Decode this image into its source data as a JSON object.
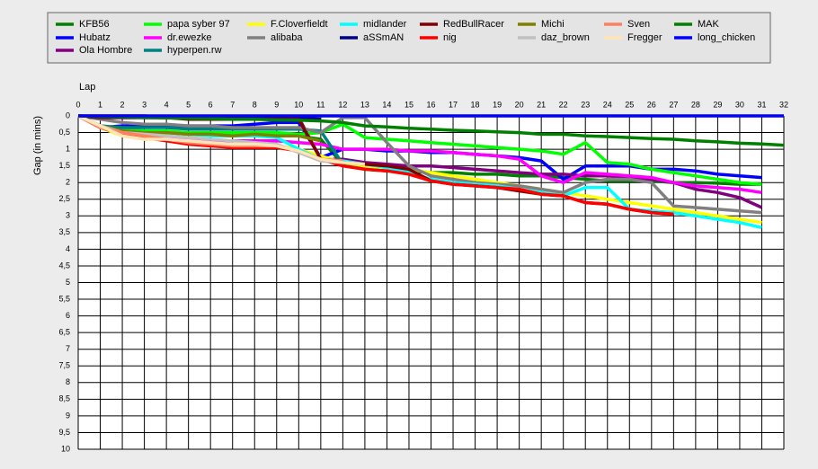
{
  "chart_data": {
    "type": "line",
    "x_label": "Lap",
    "y_label": "Gap (in mins)",
    "x": [
      0,
      1,
      2,
      3,
      4,
      5,
      6,
      7,
      8,
      9,
      10,
      11,
      12,
      13,
      14,
      15,
      16,
      17,
      18,
      19,
      20,
      21,
      22,
      23,
      24,
      25,
      26,
      27,
      28,
      29,
      30,
      31,
      32
    ],
    "xlim": [
      0,
      32
    ],
    "xticks": [
      0,
      1,
      2,
      3,
      4,
      5,
      6,
      7,
      8,
      9,
      10,
      11,
      12,
      13,
      14,
      15,
      16,
      17,
      18,
      19,
      20,
      21,
      22,
      23,
      24,
      25,
      26,
      27,
      28,
      29,
      30,
      31,
      32
    ],
    "ylim": [
      0,
      10
    ],
    "y_inverted": true,
    "grid": true,
    "yticks": [
      0,
      {
        "value": 0.5,
        "label": "0,5"
      },
      1,
      {
        "value": 1.5,
        "label": "1,5"
      },
      2,
      {
        "value": 2.5,
        "label": "2,5"
      },
      3,
      {
        "value": 3.5,
        "label": "3,5"
      },
      4,
      {
        "value": 4.5,
        "label": "4,5"
      },
      5,
      {
        "value": 5.5,
        "label": "5,5"
      },
      6,
      {
        "value": 6.5,
        "label": "6,5"
      },
      7,
      {
        "value": 7.5,
        "label": "7,5"
      },
      8,
      {
        "value": 8.5,
        "label": "8,5"
      },
      9,
      {
        "value": 9.5,
        "label": "9,5"
      },
      10
    ],
    "series": [
      {
        "name": "KFB56",
        "color": "#008000",
        "values": [
          0,
          0.3,
          0.45,
          0.5,
          0.5,
          0.55,
          0.55,
          0.6,
          0.55,
          0.6,
          0.6,
          0.7,
          1.45,
          1.6,
          1.65,
          1.65,
          1.7,
          1.7,
          1.75,
          1.75,
          1.8,
          1.8,
          1.85,
          1.9,
          1.95,
          1.95,
          1.95,
          2.0,
          2.0,
          2.02,
          2.05,
          2.05,
          null
        ]
      },
      {
        "name": "Hubatz",
        "color": "#0000ff",
        "values": [
          0,
          0.35,
          0.3,
          0.3,
          0.3,
          0.3,
          0.3,
          0.3,
          0.25,
          0.2,
          0.2,
          1.25,
          1.0,
          1.0,
          1.05,
          1.05,
          1.1,
          1.1,
          1.15,
          1.2,
          1.25,
          1.35,
          1.9,
          1.5,
          1.5,
          1.5,
          1.6,
          1.6,
          1.65,
          1.75,
          1.8,
          1.85,
          null
        ]
      },
      {
        "name": "Ola Hombre",
        "color": "#800080",
        "values": [
          0,
          0,
          0,
          0,
          0.05,
          0.05,
          0.05,
          0.05,
          0.05,
          0.05,
          0.05,
          1.3,
          1.3,
          1.4,
          1.45,
          1.5,
          1.5,
          1.55,
          1.6,
          1.65,
          1.7,
          1.75,
          1.75,
          1.8,
          1.8,
          1.85,
          1.9,
          2.0,
          2.2,
          2.3,
          2.45,
          2.75,
          null
        ]
      },
      {
        "name": "papa syber 97",
        "color": "#00ff00",
        "values": [
          0,
          0.3,
          0.4,
          0.45,
          0.45,
          0.5,
          0.5,
          0.5,
          0.5,
          0.5,
          0.55,
          0.5,
          0.25,
          0.65,
          0.7,
          0.75,
          0.8,
          0.85,
          0.9,
          0.95,
          1.0,
          1.05,
          1.15,
          0.8,
          1.4,
          1.45,
          1.6,
          1.7,
          1.8,
          1.9,
          2.0,
          2.05,
          null
        ]
      },
      {
        "name": "dr.ewezke",
        "color": "#ff00ff",
        "values": [
          0,
          0.35,
          0.5,
          0.6,
          0.7,
          0.7,
          0.75,
          0.75,
          0.75,
          0.75,
          0.8,
          0.85,
          1.0,
          1.0,
          1.0,
          1.05,
          1.05,
          1.1,
          1.15,
          1.2,
          1.3,
          1.8,
          2.0,
          1.7,
          1.75,
          1.8,
          1.85,
          2.0,
          2.1,
          2.15,
          2.2,
          2.3,
          null
        ]
      },
      {
        "name": "hyperpen.rw",
        "color": "#008080",
        "values": [
          0,
          0.3,
          0.35,
          0.35,
          0.35,
          0.4,
          0.4,
          0.4,
          0.4,
          0.4,
          0.4,
          0.45,
          1.45,
          null,
          null,
          null,
          null,
          null,
          null,
          null,
          null,
          null,
          null,
          null,
          null,
          null,
          null,
          null,
          null,
          null,
          null,
          null,
          null
        ]
      },
      {
        "name": "F.Cloverfieldt",
        "color": "#ffff00",
        "values": [
          0,
          0.35,
          0.6,
          0.7,
          0.7,
          0.8,
          0.85,
          0.9,
          0.9,
          0.9,
          1.0,
          1.2,
          1.4,
          1.5,
          1.55,
          1.6,
          1.7,
          1.8,
          1.9,
          2.0,
          2.1,
          2.2,
          2.3,
          2.4,
          2.5,
          2.6,
          2.7,
          2.8,
          2.9,
          3.0,
          3.1,
          3.2,
          null
        ]
      },
      {
        "name": "alibaba",
        "color": "#808080",
        "values": [
          0,
          0.1,
          0.2,
          0.25,
          0.25,
          0.3,
          0.3,
          0.35,
          0.35,
          0.35,
          0.35,
          0.5,
          0.05,
          0.05,
          0.8,
          1.5,
          1.8,
          1.9,
          2.0,
          2.05,
          2.1,
          2.2,
          2.3,
          2.0,
          1.9,
          1.9,
          2.0,
          2.7,
          2.75,
          2.8,
          2.85,
          2.9,
          null
        ]
      },
      {
        "name": "midlander",
        "color": "#00ffff",
        "values": [
          0,
          0.35,
          0.45,
          0.5,
          0.5,
          0.55,
          0.6,
          0.6,
          0.6,
          0.65,
          1.0,
          1.3,
          1.35,
          1.45,
          1.55,
          1.7,
          1.9,
          2.0,
          2.05,
          2.1,
          2.2,
          2.3,
          2.4,
          2.15,
          2.15,
          2.8,
          2.85,
          2.9,
          3.0,
          3.1,
          3.2,
          3.35,
          null
        ]
      },
      {
        "name": "aSSmAN",
        "color": "#000080",
        "values": [
          0,
          0.05,
          0.05,
          0.05,
          0.05,
          0.05,
          0.05,
          0.05,
          0.05,
          0.05,
          0.05,
          0.1,
          null,
          null,
          null,
          null,
          null,
          null,
          null,
          null,
          null,
          null,
          null,
          null,
          null,
          null,
          null,
          null,
          null,
          null,
          null,
          null,
          null
        ]
      },
      {
        "name": "RedBullRacer",
        "color": "#800000",
        "values": [
          0,
          0.05,
          0.05,
          0.05,
          0.05,
          0.1,
          0.1,
          0.1,
          0.1,
          0.1,
          0.1,
          1.3,
          1.4,
          1.45,
          1.5,
          1.6,
          1.95,
          2.05,
          2.1,
          2.15,
          2.25,
          2.35,
          2.4,
          2.6,
          2.65,
          2.8,
          2.9,
          2.95,
          null,
          null,
          null,
          null,
          null
        ]
      },
      {
        "name": "nig",
        "color": "#ff0000",
        "values": [
          0,
          0.35,
          0.55,
          0.65,
          0.75,
          0.85,
          0.9,
          0.95,
          0.95,
          0.95,
          1.05,
          1.3,
          1.5,
          1.6,
          1.65,
          1.75,
          1.95,
          2.05,
          2.1,
          2.15,
          2.2,
          2.35,
          2.4,
          2.6,
          2.65,
          2.8,
          2.9,
          2.95,
          null,
          null,
          null,
          null,
          null
        ]
      },
      {
        "name": "Michi",
        "color": "#808000",
        "values": [
          0,
          0.3,
          0.45,
          0.5,
          0.5,
          0.55,
          0.55,
          0.6,
          0.55,
          0.6,
          0.6,
          0.75,
          null,
          null,
          null,
          null,
          null,
          null,
          null,
          null,
          null,
          null,
          null,
          null,
          null,
          null,
          null,
          null,
          null,
          null,
          null,
          null,
          null
        ]
      },
      {
        "name": "daz_brown",
        "color": "#c0c0c0",
        "values": [
          0,
          0.3,
          0.5,
          0.55,
          0.6,
          0.65,
          0.7,
          0.75,
          0.8,
          0.85,
          1.1,
          1.35,
          1.4,
          null,
          null,
          null,
          null,
          null,
          null,
          null,
          null,
          null,
          null,
          null,
          null,
          null,
          null,
          null,
          null,
          null,
          null,
          null,
          null
        ]
      },
      {
        "name": "Sven",
        "color": "#ff8060",
        "values": [
          0,
          0.35,
          0.5,
          0.6,
          0.7,
          0.8,
          0.85,
          0.9,
          0.9,
          0.9,
          1.05,
          1.3,
          1.35,
          null,
          null,
          null,
          null,
          null,
          null,
          null,
          null,
          null,
          null,
          null,
          null,
          null,
          null,
          null,
          null,
          null,
          null,
          null,
          null
        ]
      },
      {
        "name": "Fregger",
        "color": "#ffe4b5",
        "values": [
          0,
          0.3,
          0.6,
          0.7,
          0.7,
          0.75,
          0.8,
          0.85,
          0.85,
          0.9,
          1.05,
          1.3,
          1.4,
          1.45,
          null,
          null,
          null,
          null,
          null,
          null,
          null,
          null,
          null,
          null,
          null,
          null,
          null,
          null,
          null,
          null,
          null,
          null,
          null
        ]
      },
      {
        "name": "MAK",
        "color": "#008000",
        "values": [
          0,
          0.02,
          0.03,
          0.05,
          0.06,
          0.07,
          0.08,
          0.1,
          0.1,
          0.12,
          0.13,
          0.15,
          0.2,
          0.3,
          0.33,
          0.37,
          0.4,
          0.43,
          0.45,
          0.48,
          0.5,
          0.55,
          0.55,
          0.6,
          0.62,
          0.65,
          0.68,
          0.7,
          0.75,
          0.78,
          0.82,
          0.84,
          0.88
        ]
      },
      {
        "name": "long_chicken",
        "color": "#0000ff",
        "values": [
          0,
          0,
          0,
          0,
          0,
          0,
          0,
          0,
          0,
          0,
          0,
          0,
          0,
          0,
          0,
          0,
          0,
          0,
          0,
          0,
          0,
          0,
          0,
          0,
          0,
          0,
          0,
          0,
          0,
          0,
          0,
          0,
          0
        ]
      }
    ]
  }
}
